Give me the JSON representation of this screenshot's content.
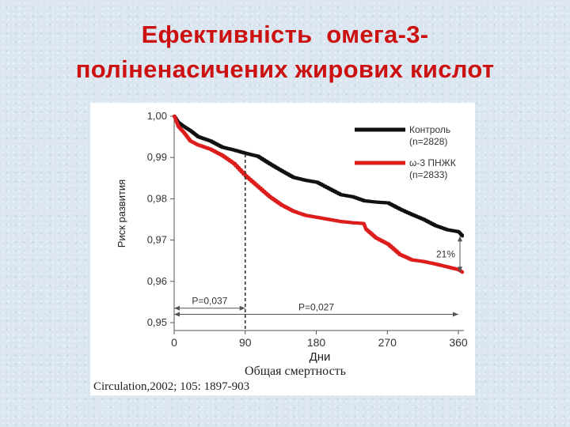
{
  "slide": {
    "title_line1": "Ефективність  омега-3-",
    "title_line2": "поліненасичених жирових кислот"
  },
  "chart_data": {
    "type": "line",
    "ylabel": "Риск развития",
    "xlabel": "Дни",
    "subtitle": "Общая смертность",
    "citation": "Circulation,2002; 105: 1897-903",
    "xlim": [
      0,
      365
    ],
    "ylim": [
      0.95,
      1.0
    ],
    "x_ticks": [
      0,
      90,
      180,
      270,
      360
    ],
    "x_tick_labels": [
      "0",
      "90",
      "180",
      "270",
      "360"
    ],
    "y_ticks": [
      0.95,
      0.96,
      0.97,
      0.98,
      0.99,
      1.0
    ],
    "y_tick_labels": [
      "0,95",
      "0,96",
      "0,97",
      "0,98",
      "0,99",
      "1,00"
    ],
    "legend_position": "top-right",
    "series": [
      {
        "name": "Контроль",
        "label_line2": "(n=2828)",
        "color": "#111111",
        "x": [
          0,
          5,
          12,
          20,
          30,
          45,
          60,
          75,
          90,
          105,
          120,
          135,
          150,
          165,
          180,
          195,
          210,
          225,
          240,
          255,
          270,
          285,
          300,
          315,
          330,
          345,
          360,
          365
        ],
        "y": [
          1.0,
          0.9985,
          0.9975,
          0.9965,
          0.995,
          0.994,
          0.9925,
          0.9918,
          0.991,
          0.9903,
          0.9885,
          0.9868,
          0.9852,
          0.9845,
          0.984,
          0.9825,
          0.981,
          0.9805,
          0.9795,
          0.9792,
          0.979,
          0.9775,
          0.9762,
          0.975,
          0.9735,
          0.9725,
          0.972,
          0.971
        ]
      },
      {
        "name": "ω-3 ПНЖК",
        "label_line2": "(n=2833)",
        "color": "#dd1c1c",
        "x": [
          0,
          5,
          12,
          20,
          30,
          45,
          60,
          75,
          90,
          105,
          120,
          135,
          150,
          165,
          180,
          195,
          210,
          225,
          240,
          243,
          255,
          270,
          285,
          300,
          315,
          330,
          345,
          360,
          365
        ],
        "y": [
          1.0,
          0.9975,
          0.996,
          0.994,
          0.993,
          0.992,
          0.9905,
          0.9885,
          0.9855,
          0.983,
          0.9805,
          0.9785,
          0.977,
          0.976,
          0.9755,
          0.975,
          0.9745,
          0.9742,
          0.974,
          0.9725,
          0.9705,
          0.969,
          0.9665,
          0.9652,
          0.9648,
          0.9642,
          0.9635,
          0.9628,
          0.9622
        ]
      }
    ],
    "annotations": [
      {
        "text": "P=0,037",
        "x_from": 0,
        "x_to": 90,
        "y": 0.9535
      },
      {
        "text": "P=0,027",
        "x_from": 0,
        "x_to": 360,
        "y": 0.952
      },
      {
        "text": "21%",
        "x": 360,
        "y_from": 0.9622,
        "y_to": 0.971
      }
    ],
    "reference_line_x": 90
  }
}
